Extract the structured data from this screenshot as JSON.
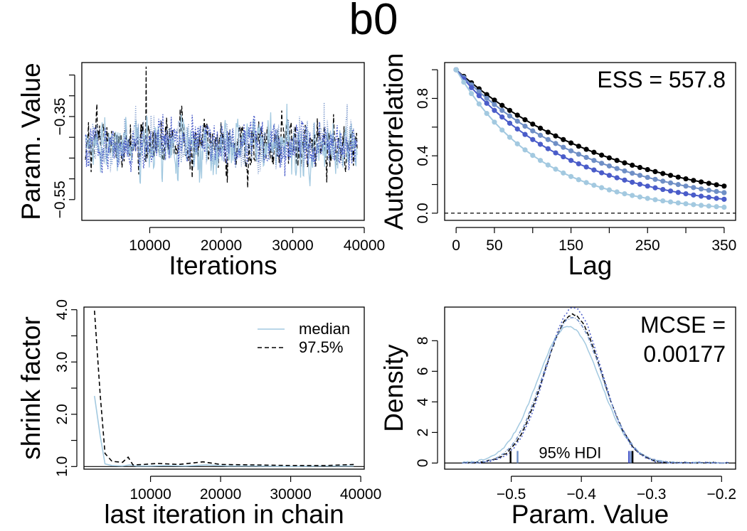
{
  "figure_title": "b0",
  "chart_data": [
    {
      "type": "line",
      "panel": "trace",
      "xlabel": "Iterations",
      "ylabel": "Param. Value",
      "xlim": [
        500,
        40000
      ],
      "ylim": [
        -0.6,
        -0.22
      ],
      "xticks": [
        10000,
        20000,
        30000,
        40000
      ],
      "xtick_labels": [
        "10000",
        "20000",
        "30000",
        "40000"
      ],
      "yticks": [
        -0.55,
        -0.5,
        -0.45,
        -0.4,
        -0.35,
        -0.3,
        -0.25
      ],
      "ytick_labels": [
        "−0.55",
        "",
        "",
        "",
        "−0.35",
        "",
        ""
      ],
      "series": [
        {
          "color": "#000000",
          "dash": "6,3",
          "x_range": [
            1000,
            39000
          ],
          "center": -0.415,
          "amplitude": 0.05,
          "spike": {
            "x": 9500,
            "y": -0.23
          }
        },
        {
          "color": "#a3c9e0",
          "dash": "",
          "x_range": [
            1000,
            39000
          ],
          "center": -0.42,
          "amplitude": 0.05
        },
        {
          "color": "#4a5cc9",
          "dash": "2,2",
          "x_range": [
            1000,
            39000
          ],
          "center": -0.418,
          "amplitude": 0.045
        },
        {
          "color": "#6f8fc6",
          "dash": "1,2",
          "x_range": [
            1000,
            39000
          ],
          "center": -0.417,
          "amplitude": 0.045
        }
      ]
    },
    {
      "type": "line",
      "panel": "autocorrelation",
      "xlabel": "Lag",
      "ylabel": "Autocorrelation",
      "xlim": [
        -15,
        365
      ],
      "ylim": [
        -0.05,
        1.05
      ],
      "xticks": [
        0,
        50,
        100,
        150,
        200,
        250,
        300,
        350
      ],
      "xtick_labels": [
        "0",
        "50",
        "",
        "150",
        "",
        "250",
        "",
        "350"
      ],
      "yticks": [
        0,
        0.2,
        0.4,
        0.6,
        0.8,
        1.0
      ],
      "ytick_labels": [
        "0.0",
        "",
        "0.4",
        "",
        "0.8",
        ""
      ],
      "annotation": "ESS = 557.8",
      "lag_step": 10,
      "lag_max": 350,
      "series": [
        {
          "color": "#000000",
          "decay_tau": 210
        },
        {
          "color": "#6f8fc6",
          "decay_tau": 180
        },
        {
          "color": "#4a5cc9",
          "decay_tau": 150
        },
        {
          "color": "#a3c9e0",
          "decay_tau": 110
        }
      ]
    },
    {
      "type": "line",
      "panel": "shrink",
      "xlabel": "last iteration in chain",
      "ylabel": "shrink factor",
      "xlim": [
        500,
        40500
      ],
      "ylim": [
        0.95,
        4.05
      ],
      "xticks": [
        10000,
        20000,
        30000,
        40000
      ],
      "xtick_labels": [
        "10000",
        "20000",
        "30000",
        "40000"
      ],
      "yticks": [
        1.0,
        1.5,
        2.0,
        2.5,
        3.0,
        3.5,
        4.0
      ],
      "ytick_labels": [
        "1.0",
        "",
        "2.0",
        "",
        "3.0",
        "",
        "4.0"
      ],
      "legend": [
        {
          "label": "median",
          "color": "#a3c9e0",
          "dash": ""
        },
        {
          "label": "97.5%",
          "color": "#000000",
          "dash": "6,4"
        }
      ],
      "series": [
        {
          "name": "median",
          "color": "#a3c9e0",
          "dash": "",
          "x": [
            2000,
            2800,
            3500,
            4500,
            6000,
            7000,
            8000,
            10000,
            12000,
            15000,
            18000,
            21000,
            25000,
            30000,
            35000,
            39000
          ],
          "y": [
            2.35,
            1.6,
            1.05,
            1.02,
            1.01,
            1.03,
            1.01,
            1.01,
            1.02,
            1.01,
            1.03,
            1.01,
            1.01,
            1.0,
            1.01,
            1.01
          ]
        },
        {
          "name": "97.5%",
          "color": "#000000",
          "dash": "6,4",
          "x": [
            2000,
            2800,
            3500,
            4500,
            6000,
            6800,
            7500,
            9000,
            11000,
            14000,
            17500,
            20000,
            25000,
            30000,
            35000,
            39000
          ],
          "y": [
            3.98,
            2.4,
            1.25,
            1.1,
            1.08,
            1.18,
            1.03,
            1.04,
            1.06,
            1.04,
            1.09,
            1.04,
            1.03,
            1.02,
            1.02,
            1.04
          ]
        }
      ]
    },
    {
      "type": "line",
      "panel": "density",
      "xlabel": "Param. Value",
      "ylabel": "Density",
      "xlim": [
        -0.595,
        -0.18
      ],
      "ylim": [
        -0.4,
        10.2
      ],
      "xticks": [
        -0.5,
        -0.4,
        -0.3,
        -0.2
      ],
      "xtick_labels": [
        "−0.5",
        "−0.4",
        "−0.3",
        "−0.2"
      ],
      "yticks": [
        0,
        2,
        4,
        6,
        8
      ],
      "ytick_labels": [
        "0",
        "2",
        "4",
        "6",
        "8"
      ],
      "annotation_line1": "MCSE =",
      "annotation_line2": "0.00177",
      "hdi_label": "95% HDI",
      "hdi_marks": [
        {
          "x": -0.501,
          "color": "#000000"
        },
        {
          "x": -0.491,
          "color": "#6f8fc6"
        },
        {
          "x": -0.332,
          "color": "#4a5cc9"
        },
        {
          "x": -0.329,
          "color": "#6f8fc6"
        },
        {
          "x": -0.327,
          "color": "#000000"
        }
      ],
      "series": [
        {
          "color": "#a3c9e0",
          "dash": "",
          "mean": -0.418,
          "sd": 0.0445,
          "peak": 8.95
        },
        {
          "color": "#000000",
          "dash": "6,3",
          "mean": -0.412,
          "sd": 0.041,
          "peak": 9.7
        },
        {
          "color": "#4a5cc9",
          "dash": "2,3",
          "mean": -0.411,
          "sd": 0.0395,
          "peak": 10.15
        },
        {
          "color": "#6f8fc6",
          "dash": "5,2,1,2",
          "mean": -0.413,
          "sd": 0.042,
          "peak": 9.5
        }
      ]
    }
  ]
}
